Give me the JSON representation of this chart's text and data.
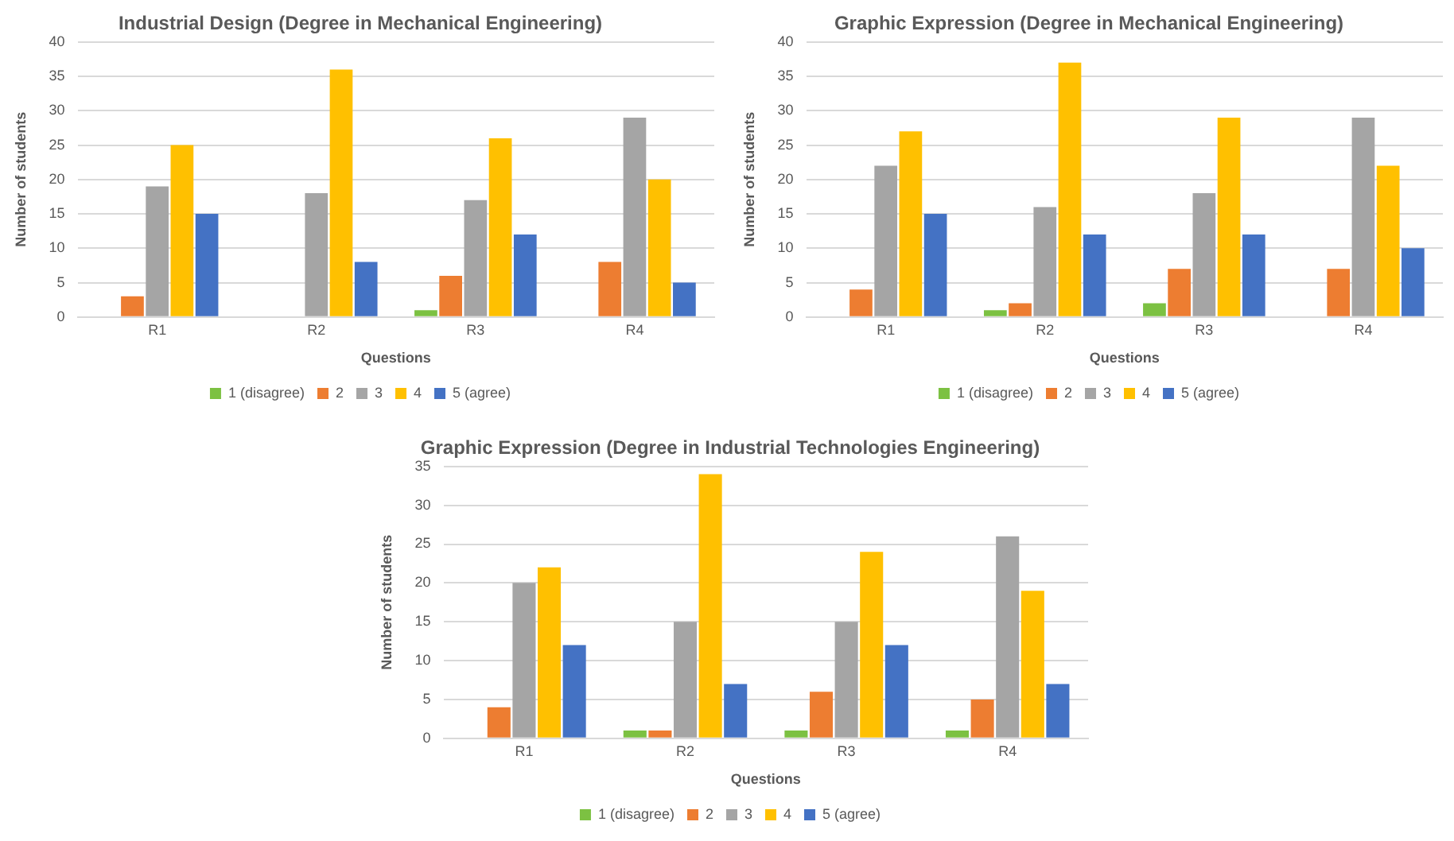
{
  "chart_data": [
    {
      "type": "bar",
      "title": "Industrial Design (Degree in Mechanical Engineering)",
      "xlabel": "Questions",
      "ylabel": "Number of students",
      "categories": [
        "R1",
        "R2",
        "R3",
        "R4"
      ],
      "series": [
        {
          "name": "1 (disagree)",
          "color": "#7cc142",
          "values": [
            0,
            0,
            1,
            0
          ]
        },
        {
          "name": "2",
          "color": "#ed7d31",
          "values": [
            3,
            0,
            6,
            8
          ]
        },
        {
          "name": "3",
          "color": "#a5a5a5",
          "values": [
            19,
            18,
            17,
            29
          ]
        },
        {
          "name": "4",
          "color": "#ffc000",
          "values": [
            25,
            36,
            26,
            20
          ]
        },
        {
          "name": "5 (agree)",
          "color": "#4472c4",
          "values": [
            15,
            8,
            12,
            5
          ]
        }
      ],
      "ylim": [
        0,
        40
      ],
      "yticks": [
        0,
        5,
        10,
        15,
        20,
        25,
        30,
        35,
        40
      ],
      "grid": "y",
      "legend": "bottom"
    },
    {
      "type": "bar",
      "title": "Graphic Expression (Degree in Mechanical Engineering)",
      "xlabel": "Questions",
      "ylabel": "Number of students",
      "categories": [
        "R1",
        "R2",
        "R3",
        "R4"
      ],
      "series": [
        {
          "name": "1 (disagree)",
          "color": "#7cc142",
          "values": [
            0,
            1,
            2,
            0
          ]
        },
        {
          "name": "2",
          "color": "#ed7d31",
          "values": [
            4,
            2,
            7,
            7
          ]
        },
        {
          "name": "3",
          "color": "#a5a5a5",
          "values": [
            22,
            16,
            18,
            29
          ]
        },
        {
          "name": "4",
          "color": "#ffc000",
          "values": [
            27,
            37,
            29,
            22
          ]
        },
        {
          "name": "5 (agree)",
          "color": "#4472c4",
          "values": [
            15,
            12,
            12,
            10
          ]
        }
      ],
      "ylim": [
        0,
        40
      ],
      "yticks": [
        0,
        5,
        10,
        15,
        20,
        25,
        30,
        35,
        40
      ],
      "grid": "y",
      "legend": "bottom"
    },
    {
      "type": "bar",
      "title": "Graphic Expression (Degree in Industrial Technologies Engineering)",
      "xlabel": "Questions",
      "ylabel": "Number of students",
      "categories": [
        "R1",
        "R2",
        "R3",
        "R4"
      ],
      "series": [
        {
          "name": "1 (disagree)",
          "color": "#7cc142",
          "values": [
            0,
            1,
            1,
            1
          ]
        },
        {
          "name": "2",
          "color": "#ed7d31",
          "values": [
            4,
            1,
            6,
            5
          ]
        },
        {
          "name": "3",
          "color": "#a5a5a5",
          "values": [
            20,
            15,
            15,
            26
          ]
        },
        {
          "name": "4",
          "color": "#ffc000",
          "values": [
            22,
            34,
            24,
            19
          ]
        },
        {
          "name": "5 (agree)",
          "color": "#4472c4",
          "values": [
            12,
            7,
            12,
            7
          ]
        }
      ],
      "ylim": [
        0,
        35
      ],
      "yticks": [
        0,
        5,
        10,
        15,
        20,
        25,
        30,
        35
      ],
      "grid": "y",
      "legend": "bottom"
    }
  ]
}
